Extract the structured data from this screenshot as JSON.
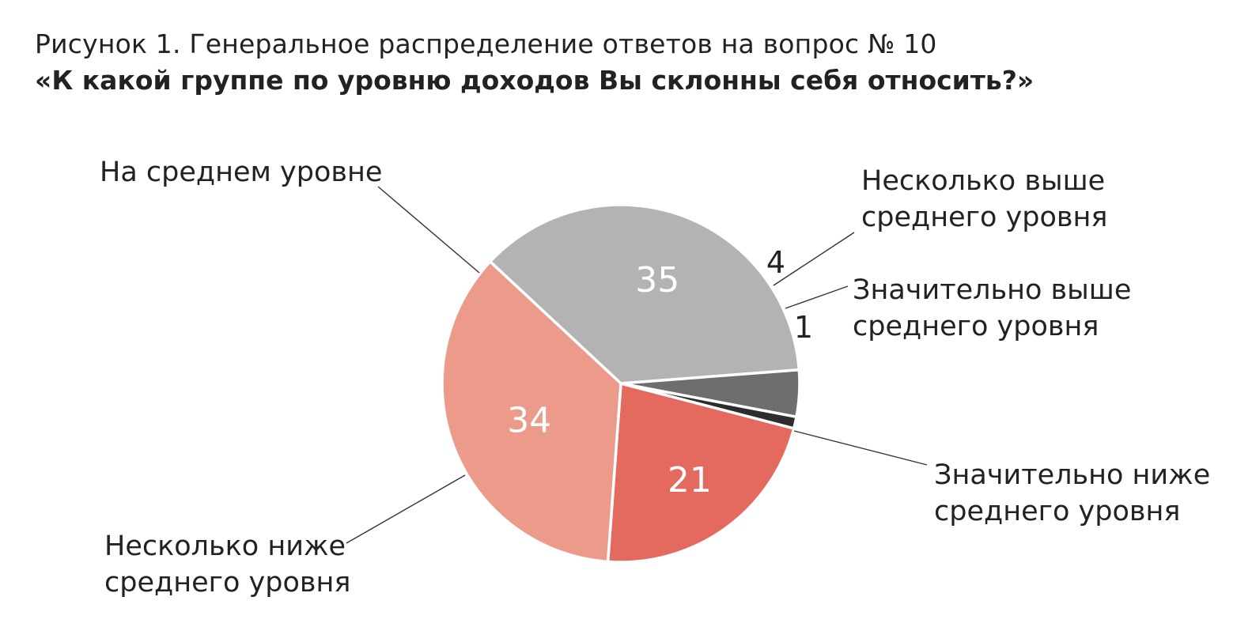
{
  "title": {
    "line1": "Рисунок 1. Генеральное распределение ответов на вопрос № 10",
    "line2": "«К какой группе по уровню доходов Вы склонны себя относить?»"
  },
  "chart_data": {
    "type": "pie",
    "start_angle_deg": -137,
    "direction": "clockwise",
    "slices": [
      {
        "label_lines": [
          "На среднем уровне"
        ],
        "value": 35,
        "color": "#b3b3b3"
      },
      {
        "label_lines": [
          "Несколько выше",
          "среднего уровня"
        ],
        "value": 4,
        "color": "#6e6e6e"
      },
      {
        "label_lines": [
          "Значительно выше",
          "среднего уровня"
        ],
        "value": 1,
        "color": "#2d2d2d"
      },
      {
        "label_lines": [
          "Значительно ниже",
          "среднего уровня"
        ],
        "value": 21,
        "color": "#e46a5f"
      },
      {
        "label_lines": [
          "Несколько ниже",
          "среднего уровня"
        ],
        "value": 34,
        "color": "#ec9a89"
      }
    ]
  }
}
